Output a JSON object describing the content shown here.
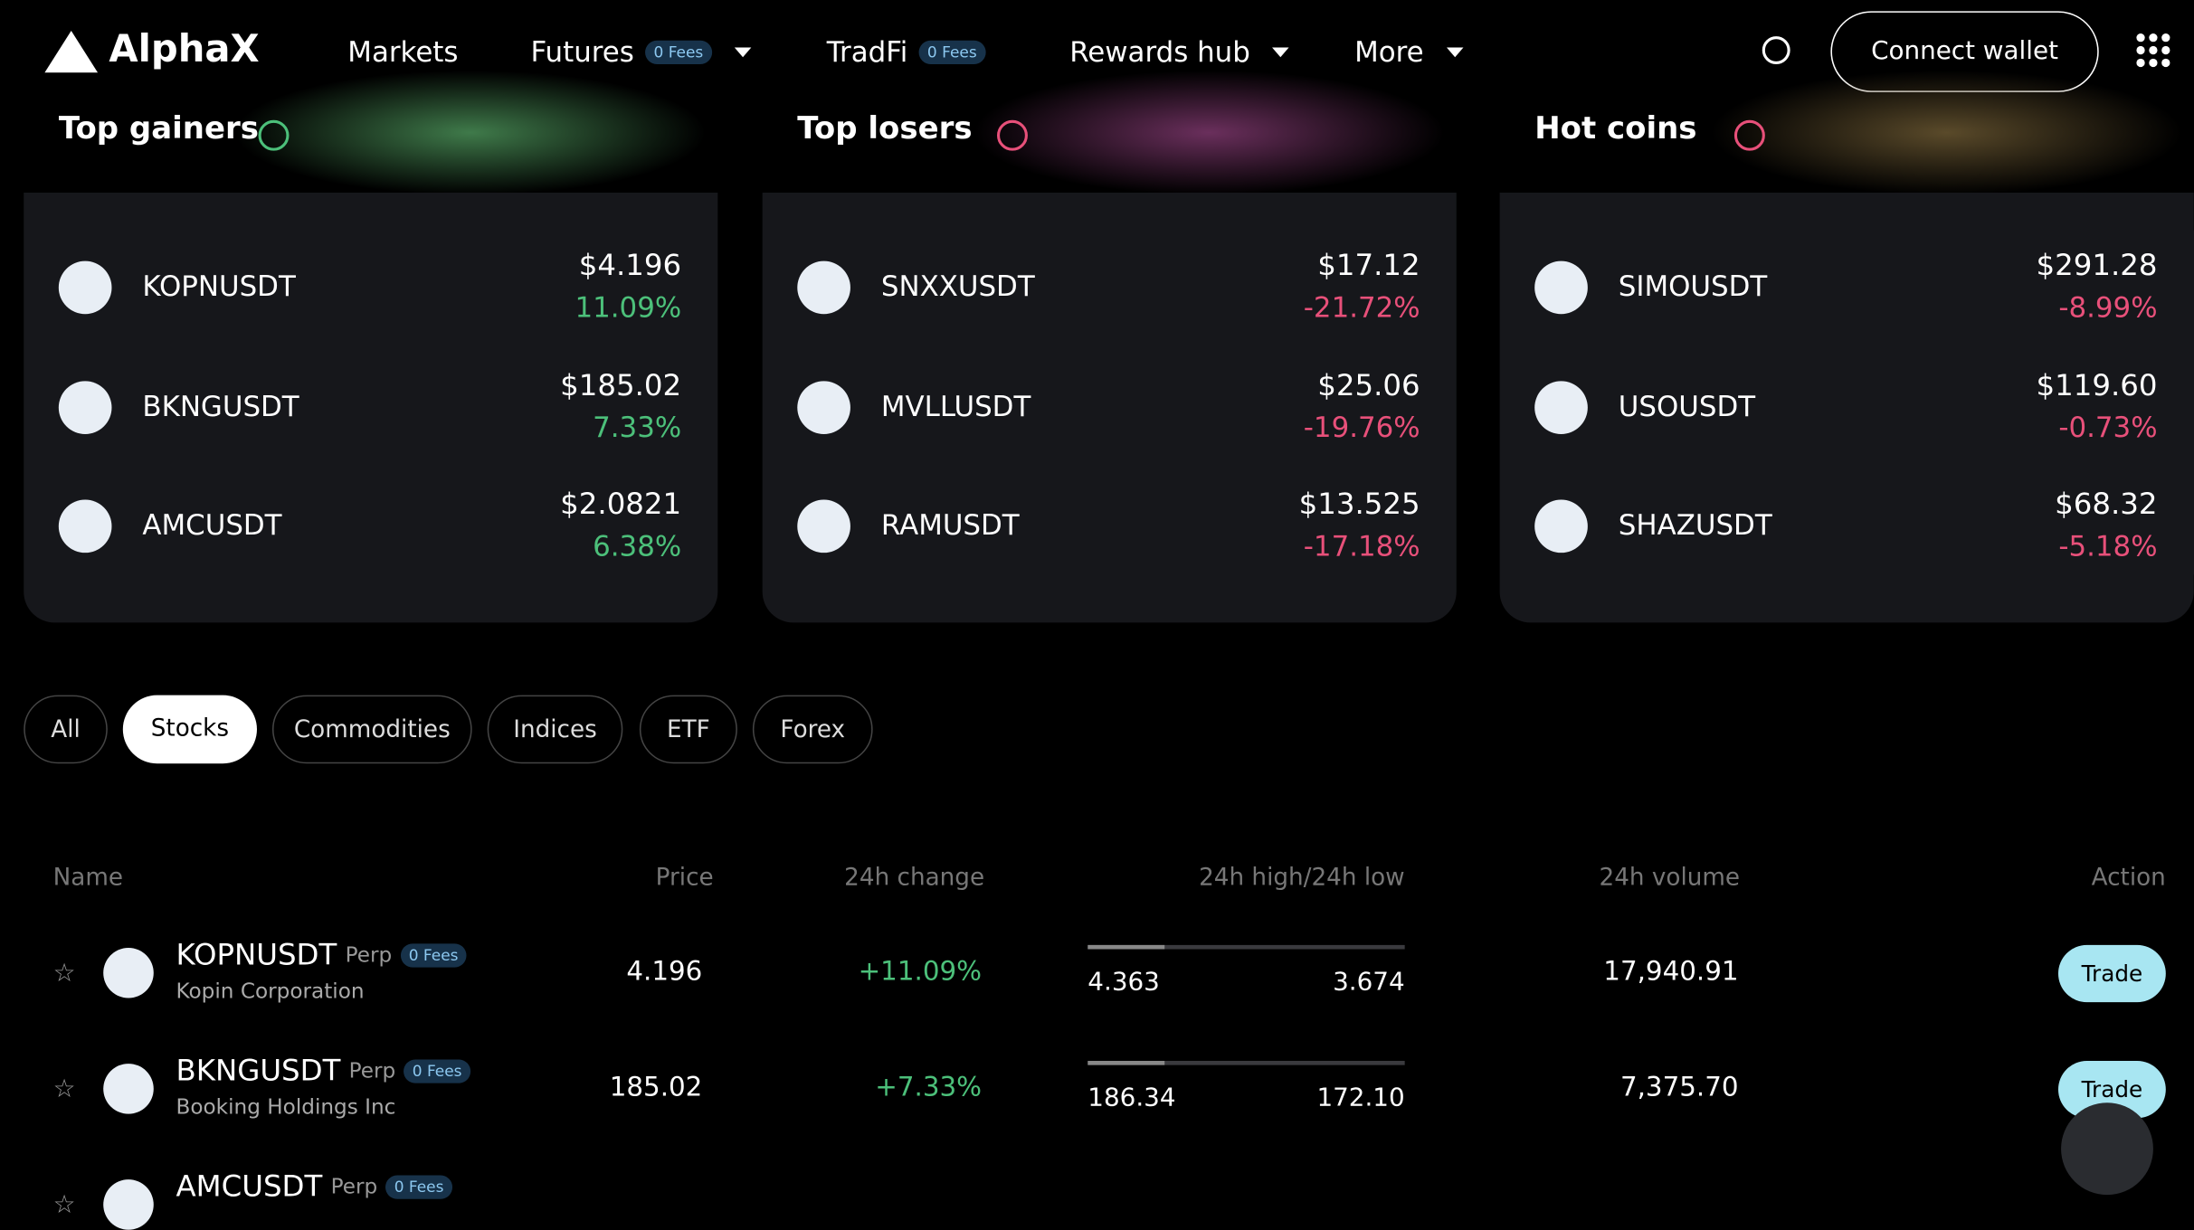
{
  "nav": {
    "logo": "AlphaX",
    "items": [
      {
        "label": "Markets"
      },
      {
        "label": "Futures",
        "badge": "0 Fees",
        "dropdown": true
      },
      {
        "label": "TradFi",
        "badge": "0 Fees"
      },
      {
        "label": "Rewards hub",
        "dropdown": true
      },
      {
        "label": "More",
        "dropdown": true
      }
    ],
    "button": "Connect wallet"
  },
  "cards": [
    {
      "title": "Top gainers",
      "change_color": "#4cc07a",
      "glow": "#3f7a4a",
      "rows": [
        {
          "symbol": "KOPNUSDT",
          "price": "$4.196",
          "change": "11.09%"
        },
        {
          "symbol": "BKNGUSDT",
          "price": "$185.02",
          "change": "7.33%"
        },
        {
          "symbol": "AMCUSDT",
          "price": "$2.0821",
          "change": "6.38%"
        }
      ]
    },
    {
      "title": "Top losers",
      "change_color": "#e8507a",
      "glow": "#6a2f5c",
      "rows": [
        {
          "symbol": "SNXXUSDT",
          "price": "$17.12",
          "change": "-21.72%"
        },
        {
          "symbol": "MVLLUSDT",
          "price": "$25.06",
          "change": "-19.76%"
        },
        {
          "symbol": "RAMUSDT",
          "price": "$13.525",
          "change": "-17.18%"
        }
      ]
    },
    {
      "title": "Hot coins",
      "change_color": "#e8507a",
      "glow": "#5a4a2a",
      "rows": [
        {
          "symbol": "SIMOUSDT",
          "price": "$291.28",
          "change": "-8.99%"
        },
        {
          "symbol": "USOUSDT",
          "price": "$119.60",
          "change": "-0.73%"
        },
        {
          "symbol": "SHAZUSDT",
          "price": "$68.32",
          "change": "-5.18%"
        }
      ]
    }
  ],
  "tabs": {
    "items": [
      "All",
      "Stocks",
      "Commodities",
      "Indices",
      "ETF",
      "Forex"
    ],
    "active": 1
  },
  "table": {
    "headers": [
      "Name",
      "Price",
      "24h change",
      "24h high/24h low",
      "24h volume",
      "Action"
    ],
    "rows": [
      {
        "symbol": "KOPNUSDT",
        "type": "Perp",
        "badge": "0 Fees",
        "company": "Kopin Corporation",
        "price": "4.196",
        "change": "+11.09%",
        "high": "4.363",
        "low": "3.674",
        "volume": "17,940.91",
        "action": "Trade"
      },
      {
        "symbol": "BKNGUSDT",
        "type": "Perp",
        "badge": "0 Fees",
        "company": "Booking Holdings Inc",
        "price": "185.02",
        "change": "+7.33%",
        "high": "186.34",
        "low": "172.10",
        "volume": "7,375.70",
        "action": "Trade"
      },
      {
        "symbol": "AMCUSDT",
        "type": "Perp",
        "badge": "0 Fees"
      }
    ]
  }
}
